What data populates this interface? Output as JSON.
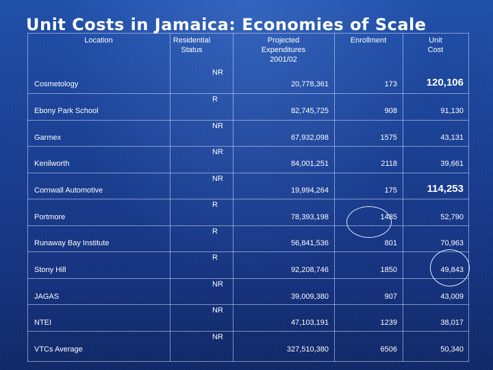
{
  "title": "Unit Costs in Jamaica: Economies of Scale",
  "headers": {
    "location": "Location",
    "residential_status": "Residential\nStatus",
    "projected_expenditures": "Projected\nExpenditures\n2001/02",
    "enrollment": "Enrollment",
    "unit_cost": "Unit\nCost"
  },
  "rows": [
    {
      "location": "Cosmetology",
      "status": "NR",
      "expenditures": "20,778,361",
      "enrollment": "173",
      "unit_cost": "120,106"
    },
    {
      "location": "Ebony Park School",
      "status": "R",
      "expenditures": "82,745,725",
      "enrollment": "908",
      "unit_cost": "91,130"
    },
    {
      "location": "Garmex",
      "status": "NR",
      "expenditures": "67,932,098",
      "enrollment": "1575",
      "unit_cost": "43,131"
    },
    {
      "location": "Kenilworth",
      "status": "NR",
      "expenditures": "84,001,251",
      "enrollment": "2118",
      "unit_cost": "39,661"
    },
    {
      "location": "Cornwall Automotive",
      "status": "NR",
      "expenditures": "19,994,264",
      "enrollment": "175",
      "unit_cost": "114,253"
    },
    {
      "location": "Portmore",
      "status": "R",
      "expenditures": "78,393,198",
      "enrollment": "1485",
      "unit_cost": "52,790"
    },
    {
      "location": "Runaway Bay Institute",
      "status": "R",
      "expenditures": "56,841,536",
      "enrollment": "801",
      "unit_cost": "70,963"
    },
    {
      "location": "Stony Hill",
      "status": "R",
      "expenditures": "92,208,746",
      "enrollment": "1850",
      "unit_cost": "49,843"
    },
    {
      "location": "JAGAS",
      "status": "NR",
      "expenditures": "39,009,380",
      "enrollment": "907",
      "unit_cost": "43,009"
    },
    {
      "location": "NTEI",
      "status": "NR",
      "expenditures": "47,103,191",
      "enrollment": "1239",
      "unit_cost": "38,017"
    },
    {
      "location": "VTCs Average",
      "status": "NR",
      "expenditures": "327,510,380",
      "enrollment": "6506",
      "unit_cost": "50,340"
    }
  ],
  "highlighted_costs": [
    "120,106",
    "114,253"
  ]
}
